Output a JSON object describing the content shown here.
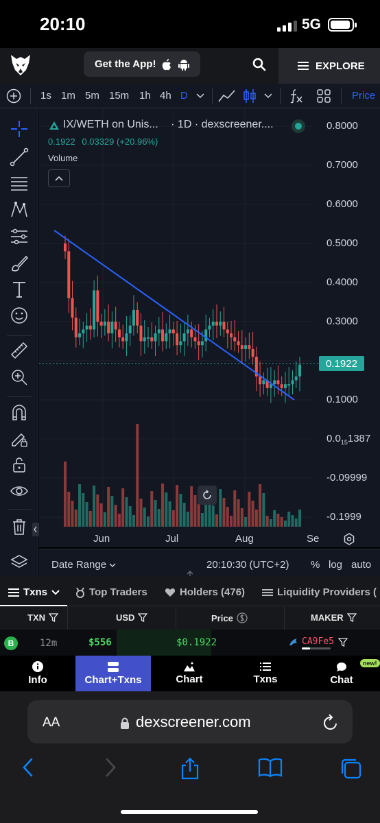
{
  "status": {
    "time": "20:10",
    "network": "5G"
  },
  "header": {
    "get_app": "Get the App!",
    "explore": "EXPLORE"
  },
  "toolbar": {
    "intervals": [
      "1s",
      "1m",
      "5m",
      "15m",
      "1h",
      "4h",
      "D"
    ],
    "active_interval": "D",
    "price_label": "Price"
  },
  "chart": {
    "title": "IX/WETH on Unis...",
    "subtitle": "· 1D · dexscreener....",
    "last_price": "0.1922",
    "change": "0.03329 (+20.96%)",
    "volume_label": "Volume",
    "price_tag": "0.1922",
    "y_ticks": [
      "0.8000",
      "0.7000",
      "0.6000",
      "0.5000",
      "0.4000",
      "0.3000",
      "0.1000",
      "-0.09999",
      "-0.1999"
    ],
    "y_tick_special": {
      "main": "0.0",
      "sub": "15",
      "tail": "1387"
    },
    "x_ticks": [
      "Jun",
      "Jul",
      "Aug",
      "Se"
    ],
    "date_range": "Date Range",
    "clock": "20:10:30 (UTC+2)",
    "scale_pct": "%",
    "scale_log": "log",
    "scale_auto": "auto",
    "colors": {
      "up": "#26a69a",
      "down": "#ef5350",
      "trendline": "#2962ff"
    }
  },
  "chart_data": {
    "type": "candlestick",
    "title": "IX/WETH on Unis... · 1D · dexscreener....",
    "x_ticks": [
      "Jun",
      "Jul",
      "Aug",
      "Se"
    ],
    "ylim": [
      -0.22,
      0.82
    ],
    "last_close": 0.1922,
    "closes_approx": [
      0.48,
      0.36,
      0.31,
      0.26,
      0.27,
      0.28,
      0.29,
      0.28,
      0.38,
      0.3,
      0.29,
      0.3,
      0.27,
      0.3,
      0.28,
      0.26,
      0.25,
      0.27,
      0.29,
      0.33,
      0.29,
      0.25,
      0.26,
      0.26,
      0.25,
      0.27,
      0.28,
      0.25,
      0.27,
      0.28,
      0.27,
      0.24,
      0.25,
      0.27,
      0.28,
      0.26,
      0.25,
      0.24,
      0.25,
      0.28,
      0.29,
      0.3,
      0.29,
      0.3,
      0.28,
      0.27,
      0.26,
      0.25,
      0.24,
      0.23,
      0.24,
      0.23,
      0.21,
      0.16,
      0.14,
      0.15,
      0.13,
      0.14,
      0.15,
      0.14,
      0.13,
      0.14,
      0.14,
      0.15,
      0.16,
      0.19
    ],
    "trendline": [
      [
        0.53,
        0
      ],
      [
        0.1,
        1
      ]
    ],
    "volume_peak_index": 20
  },
  "tabs": [
    {
      "label": "Txns"
    },
    {
      "label": "Top Traders"
    },
    {
      "label": "Holders (476)"
    },
    {
      "label": "Liquidity Providers ("
    }
  ],
  "table": {
    "headers": {
      "txn": "TXN",
      "usd": "USD",
      "price": "Price",
      "maker": "MAKER"
    },
    "row": {
      "type": "B",
      "age": "12m",
      "usd": "$556",
      "price": "$0.1922",
      "maker": "CA9Fe5"
    }
  },
  "bottom_nav": [
    {
      "label": "Info"
    },
    {
      "label": "Chart+Txns"
    },
    {
      "label": "Chart"
    },
    {
      "label": "Txns"
    },
    {
      "label": "Chat"
    }
  ],
  "bottom_nav_badge": "new!",
  "browser": {
    "aa": "AA",
    "url": "dexscreener.com"
  }
}
